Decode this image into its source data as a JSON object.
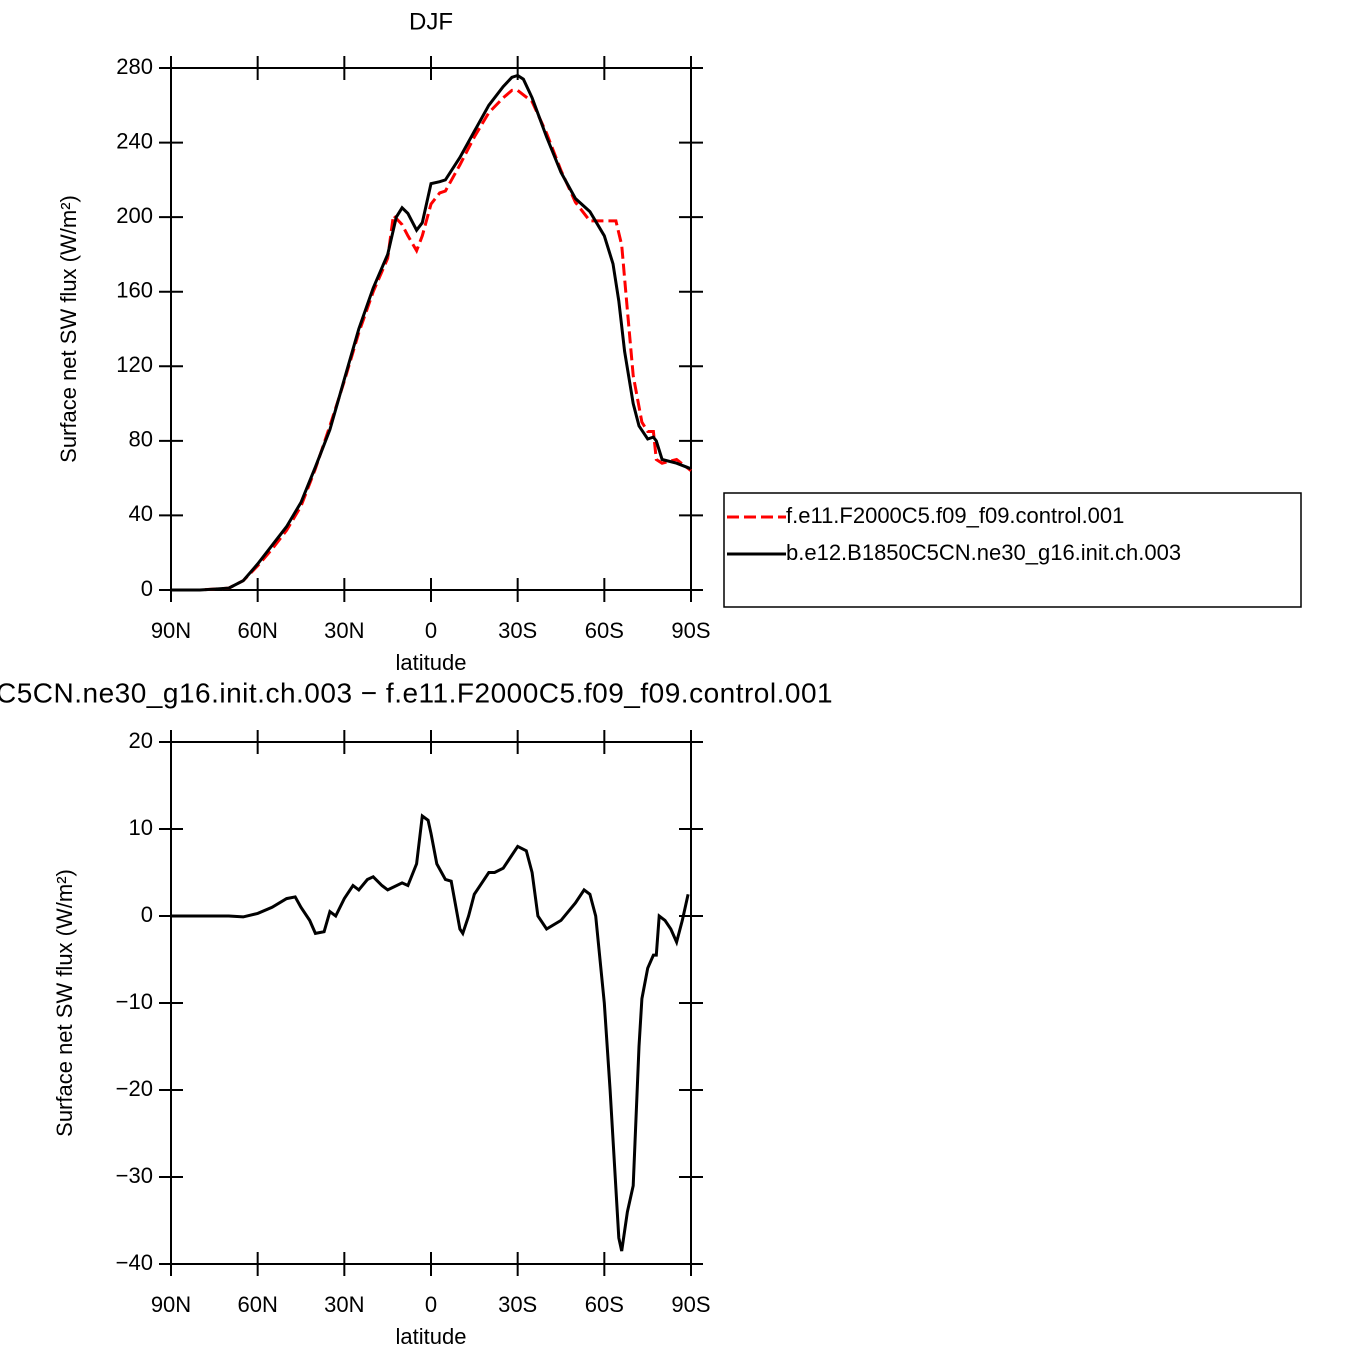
{
  "chart_data": [
    {
      "type": "line",
      "title": "DJF",
      "xlabel": "latitude",
      "ylabel": "Surface net SW flux (W/m²)",
      "xlim": [
        90,
        -90
      ],
      "xticks": [
        {
          "value": 90,
          "label": "90N"
        },
        {
          "value": 60,
          "label": "60N"
        },
        {
          "value": 30,
          "label": "30N"
        },
        0,
        {
          "value": -30,
          "label": "30S"
        },
        {
          "value": -60,
          "label": "60S"
        },
        {
          "value": -90,
          "label": "90S"
        }
      ],
      "ylim": [
        0,
        280
      ],
      "yticks": [
        0,
        40,
        80,
        120,
        160,
        200,
        240,
        280
      ],
      "legend": "right",
      "series": [
        {
          "name": "f.e11.F2000C5.f09_f09.control.001",
          "color": "#ff0000",
          "dash": "dashed",
          "x": [
            90,
            80,
            75,
            70,
            65,
            60,
            55,
            50,
            45,
            40,
            35,
            30,
            25,
            20,
            15,
            13,
            10,
            8,
            5,
            3,
            0,
            -3,
            -5,
            -10,
            -15,
            -20,
            -25,
            -28,
            -30,
            -35,
            -40,
            -45,
            -50,
            -55,
            -60,
            -64,
            -66,
            -68,
            -70,
            -73,
            -75,
            -77,
            -78,
            -80,
            -85,
            -90
          ],
          "values": [
            0,
            0,
            0.5,
            1,
            5,
            13,
            22,
            32,
            45,
            65,
            88,
            112,
            138,
            160,
            178,
            201,
            196,
            190,
            182,
            190,
            207,
            213,
            214,
            228,
            243,
            256,
            264,
            268,
            268,
            262,
            245,
            225,
            208,
            198,
            198,
            198,
            185,
            150,
            115,
            90,
            85,
            85,
            70,
            68,
            70,
            64
          ]
        },
        {
          "name": "b.e12.B1850C5CN.ne30_g16.init.ch.003",
          "color": "#000000",
          "dash": "solid",
          "x": [
            90,
            80,
            75,
            70,
            65,
            60,
            55,
            50,
            45,
            40,
            35,
            30,
            25,
            20,
            15,
            12,
            10,
            8,
            5,
            3,
            0,
            -3,
            -5,
            -10,
            -15,
            -20,
            -25,
            -28,
            -30,
            -32,
            -35,
            -40,
            -45,
            -50,
            -55,
            -60,
            -63,
            -65,
            -67,
            -70,
            -72,
            -75,
            -77,
            -78,
            -80,
            -85,
            -90
          ],
          "values": [
            0,
            0,
            0.5,
            1,
            5,
            14,
            24,
            34,
            47,
            66,
            86,
            113,
            140,
            162,
            180,
            200,
            205,
            202,
            193,
            197,
            218,
            219,
            220,
            232,
            246,
            260,
            270,
            275,
            276,
            274,
            264,
            243,
            224,
            210,
            203,
            190,
            175,
            155,
            128,
            100,
            88,
            81,
            82,
            80,
            70,
            68,
            65
          ]
        }
      ]
    },
    {
      "type": "line",
      "title": "C5CN.ne30_g16.init.ch.003 − f.e11.F2000C5.f09_f09.control.001",
      "xlabel": "latitude",
      "ylabel": "Surface net SW flux (W/m²)",
      "xlim": [
        90,
        -90
      ],
      "xticks": [
        {
          "value": 90,
          "label": "90N"
        },
        {
          "value": 60,
          "label": "60N"
        },
        {
          "value": 30,
          "label": "30N"
        },
        0,
        {
          "value": -30,
          "label": "30S"
        },
        {
          "value": -60,
          "label": "60S"
        },
        {
          "value": -90,
          "label": "90S"
        }
      ],
      "ylim": [
        -40,
        20
      ],
      "yticks": [
        {
          "value": -40,
          "label": "−40"
        },
        {
          "value": -30,
          "label": "−30"
        },
        {
          "value": -20,
          "label": "−20"
        },
        {
          "value": -10,
          "label": "−10"
        },
        0,
        10,
        20
      ],
      "series": [
        {
          "color": "#000000",
          "dash": "solid",
          "x": [
            90,
            80,
            70,
            65,
            60,
            55,
            50,
            47,
            45,
            42,
            40,
            37,
            35,
            33,
            30,
            27,
            25,
            22,
            20,
            17,
            15,
            10,
            8,
            5,
            3,
            1,
            0,
            -2,
            -5,
            -7,
            -10,
            -11,
            -13,
            -15,
            -20,
            -22,
            -25,
            -27,
            -30,
            -33,
            -35,
            -37,
            -40,
            -45,
            -50,
            -53,
            -55,
            -57,
            -60,
            -62,
            -65,
            -66,
            -68,
            -70,
            -72,
            -73,
            -75,
            -77,
            -78,
            -79,
            -81,
            -83,
            -85,
            -87,
            -89
          ],
          "values": [
            0,
            0,
            0,
            -0.1,
            0.3,
            1,
            2,
            2.2,
            1,
            -0.5,
            -2,
            -1.8,
            0.5,
            0,
            2,
            3.5,
            3,
            4.2,
            4.5,
            3.5,
            3,
            3.8,
            3.5,
            6,
            11.5,
            11,
            9.5,
            6,
            4.2,
            4,
            -1.5,
            -2,
            0,
            2.5,
            5,
            5,
            5.5,
            6.5,
            8,
            7.5,
            5,
            0,
            -1.5,
            -0.5,
            1.5,
            3,
            2.5,
            0,
            -10,
            -20,
            -37,
            -38.5,
            -34,
            -31,
            -15,
            -9.5,
            -6,
            -4.5,
            -4.5,
            0,
            -0.5,
            -1.5,
            -3,
            -0.5,
            2.5
          ]
        }
      ]
    }
  ]
}
